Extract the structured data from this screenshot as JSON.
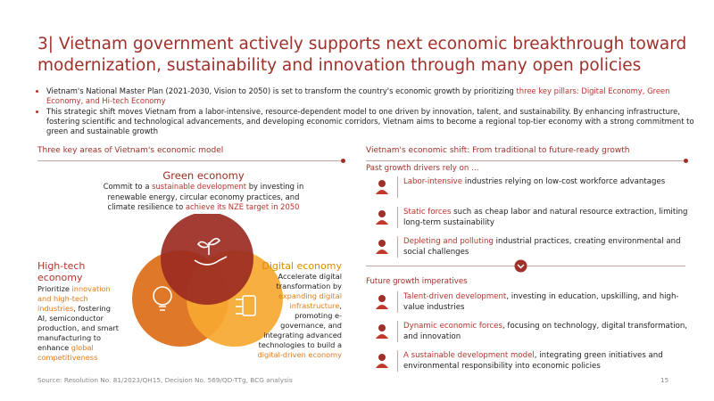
{
  "header": {
    "title": "3| Vietnam government actively supports next economic breakthrough toward modernization, sustainability and innovation through many open policies"
  },
  "intro": {
    "bullets": [
      [
        "Vietnam's National Master Plan (2021-2030, Vision to 2050) is set to transform the country's economic growth by prioritizing ",
        {
          "text": "three key pillars: Digital Economy, Green Economy, and Hi-tech Economy",
          "color": "#b5342c"
        }
      ],
      [
        "This strategic shift moves Vietnam from a labor-intensive, resource-dependent model to one driven by innovation, talent, and sustainability. By enhancing infrastructure, fostering scientific and technological advancements, and developing economic corridors, Vietnam aims to become a regional top-tier economy with a strong commitment to green and sustainable growth"
      ]
    ]
  },
  "left": {
    "heading": "Three key areas of Vietnam's economic model",
    "green": {
      "title": "Green economy",
      "description": [
        "Commit to a ",
        {
          "text": "sustainable development",
          "color": "#b5342c"
        },
        " by investing in renewable energy, circular economy practices, and climate resilience to ",
        {
          "text": "achieve its NZE target in 2050",
          "color": "#b5342c"
        }
      ]
    },
    "hightech": {
      "title": "High-tech economy",
      "description": [
        "Prioritize ",
        {
          "text": "innovation and high-tech industries",
          "color": "#e07b1a"
        },
        ", fostering AI, semiconductor production, and smart manufacturing to enhance ",
        {
          "text": "global competitiveness",
          "color": "#e07b1a"
        }
      ]
    },
    "digital": {
      "title": "Digital economy",
      "description": [
        "Accelerate digital transformation by ",
        {
          "text": "expanding digital infrastructure",
          "color": "#e07b1a"
        },
        ", promoting e-governance, and integrating advanced technologies to build a ",
        {
          "text": "digital-driven economy",
          "color": "#e07b1a"
        }
      ]
    }
  },
  "right": {
    "heading": "Vietnam's economic shift: From traditional to future-ready growth",
    "past": {
      "heading": "Past growth drivers rely on …",
      "items": [
        [
          {
            "text": "Labor-intensive",
            "color": "#b5342c"
          },
          " industries relying on low-cost workforce advantages"
        ],
        [
          {
            "text": "Static forces",
            "color": "#b5342c"
          },
          " such as cheap labor and natural resource extraction, limiting long-term sustainability"
        ],
        [
          {
            "text": "Depleting and polluting",
            "color": "#b5342c"
          },
          " industrial practices, creating environmental and social challenges"
        ]
      ]
    },
    "future": {
      "heading": "Future growth imperatives",
      "items": [
        [
          {
            "text": "Talent-driven development",
            "color": "#b5342c"
          },
          ", investing in education, upskilling, and high-value industries"
        ],
        [
          {
            "text": "Dynamic economic forces",
            "color": "#b5342c"
          },
          ", focusing on technology, digital transformation, and innovation"
        ],
        [
          {
            "text": "A sustainable development model",
            "color": "#b5342c"
          },
          ", integrating green initiatives and environmental responsibility into economic policies"
        ]
      ]
    }
  },
  "footer": {
    "source": "Source: Resolution No. 81/2023/QH15, Decision No. 569/QD-TTg, BCG analysis",
    "page": "15"
  }
}
